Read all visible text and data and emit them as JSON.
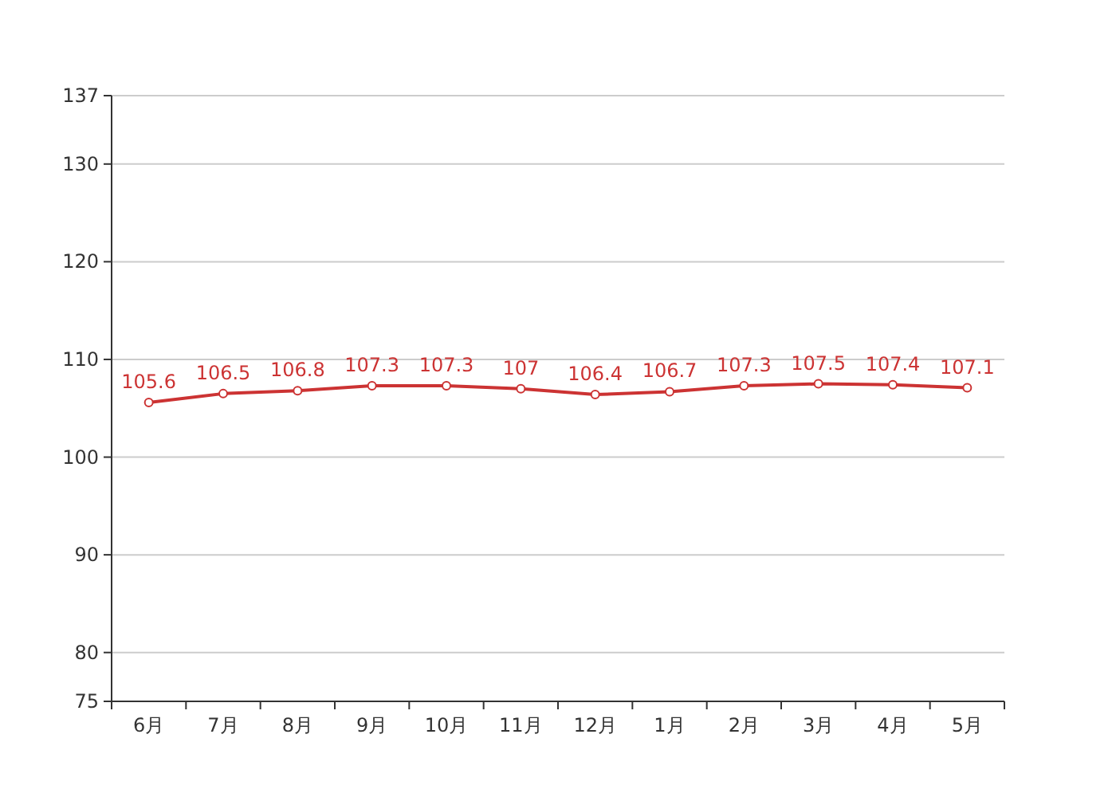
{
  "chart_data": {
    "type": "line",
    "categories": [
      "6月",
      "7月",
      "8月",
      "9月",
      "10月",
      "11月",
      "12月",
      "1月",
      "2月",
      "3月",
      "4月",
      "5月"
    ],
    "series": [
      {
        "color": "#cc3333",
        "values": [
          105.6,
          106.5,
          106.8,
          107.3,
          107.3,
          107,
          106.4,
          106.7,
          107.3,
          107.5,
          107.4,
          107.1
        ]
      }
    ],
    "ylim": [
      75,
      137
    ],
    "yticks": [
      75,
      80,
      90,
      100,
      110,
      120,
      130,
      137
    ],
    "grid": "y",
    "data_labels": true,
    "marker": "circle",
    "line_style": "solid"
  }
}
